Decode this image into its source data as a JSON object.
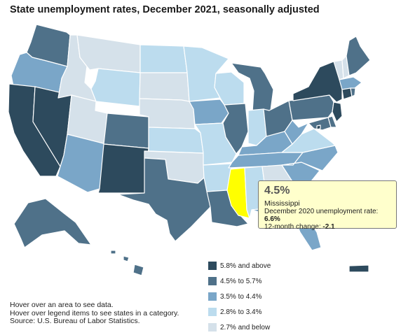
{
  "title": "State unemployment rates, December 2021, seasonally adjusted",
  "legend": {
    "items": [
      {
        "label": "5.8% and above",
        "color": "#2d4a5d"
      },
      {
        "label": "4.5% to 5.7%",
        "color": "#4f7189"
      },
      {
        "label": "3.5% to 4.4%",
        "color": "#7aa6c8"
      },
      {
        "label": "2.8% to 3.4%",
        "color": "#bcdcee"
      },
      {
        "label": "2.7% and below",
        "color": "#d5e1ea"
      }
    ],
    "highlight_color": "#ffff00"
  },
  "notes": {
    "line1": "Hover over an area to see data.",
    "line2": "Hover over legend items to see states in a category.",
    "source": "Source: U.S. Bureau of Labor Statistics."
  },
  "tooltip": {
    "value": "4.5%",
    "state": "Mississippi",
    "prev_label": "December 2020 unemployment rate: ",
    "prev_value": "6.6%",
    "change_label": "12-month change: ",
    "change_value": "-2.1"
  },
  "states": {
    "WA": "medium",
    "OR": "light",
    "CA": "dark",
    "NV": "dark",
    "ID": "lowest",
    "MT": "lowest",
    "WY": "low",
    "UT": "lowest",
    "AZ": "light",
    "CO": "medium",
    "NM": "dark",
    "ND": "low",
    "SD": "lowest",
    "NE": "lowest",
    "KS": "low",
    "OK": "lowest",
    "TX": "medium",
    "MN": "low",
    "IA": "light",
    "MO": "low",
    "AR": "low",
    "LA": "medium",
    "WI": "low",
    "IL": "medium",
    "MI": "medium",
    "IN": "low",
    "OH": "medium",
    "KY": "light",
    "TN": "light",
    "MS": "highlight",
    "AL": "low",
    "GA": "lowest",
    "FL": "light",
    "SC": "light",
    "NC": "light",
    "VA": "low",
    "WV": "light",
    "PA": "medium",
    "NY": "dark",
    "VT": "lowest",
    "NH": "lowest",
    "ME": "medium",
    "MA": "light",
    "CT": "dark",
    "RI": "medium",
    "NJ": "dark",
    "DE": "medium",
    "MD": "medium",
    "DC": "dark",
    "AK": "medium",
    "HI": "medium",
    "PR": "dark"
  }
}
